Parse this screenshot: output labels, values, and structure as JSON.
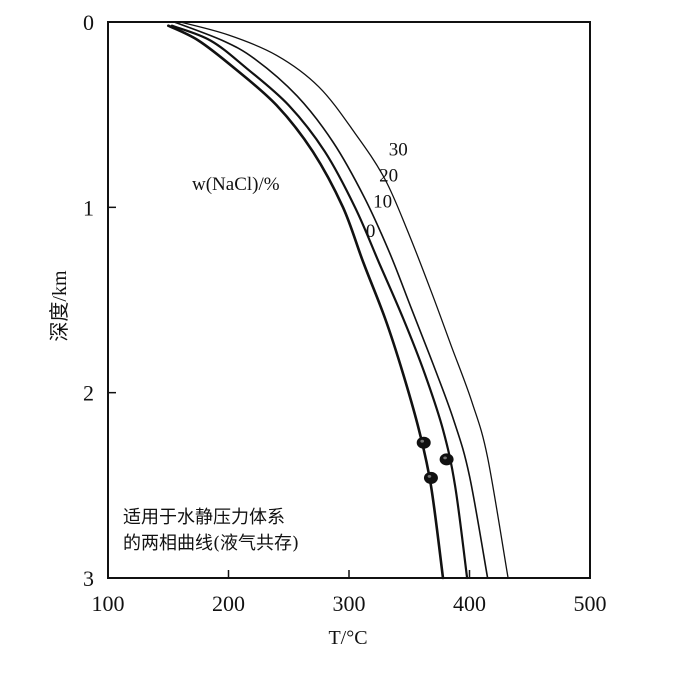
{
  "chart_data": {
    "type": "line",
    "xlabel": "T/°C",
    "ylabel": "深度/km",
    "xlim": [
      100,
      500
    ],
    "ylim": [
      0,
      3
    ],
    "y_reversed": true,
    "grid": false,
    "x_ticks": [
      "100",
      "200",
      "300",
      "400",
      "500"
    ],
    "y_ticks": [
      "0",
      "1",
      "2",
      "3"
    ],
    "series_legend_title": "w(NaCl)/%",
    "annotation": [
      "适用于水静压力体系",
      "的两相曲线(液气共存)"
    ],
    "series": [
      {
        "name": "0",
        "label_at": {
          "x": 314,
          "y": 1.16
        },
        "points": [
          [
            150,
            0.02
          ],
          [
            175,
            0.1
          ],
          [
            205,
            0.25
          ],
          [
            240,
            0.45
          ],
          [
            270,
            0.7
          ],
          [
            295,
            1.0
          ],
          [
            312,
            1.3
          ],
          [
            330,
            1.6
          ],
          [
            345,
            1.9
          ],
          [
            358,
            2.2
          ],
          [
            368,
            2.5
          ],
          [
            378,
            3.0
          ]
        ]
      },
      {
        "name": "10",
        "label_at": {
          "x": 320,
          "y": 1.0
        },
        "points": [
          [
            153,
            0.02
          ],
          [
            185,
            0.1
          ],
          [
            215,
            0.25
          ],
          [
            250,
            0.45
          ],
          [
            280,
            0.7
          ],
          [
            305,
            1.0
          ],
          [
            325,
            1.3
          ],
          [
            345,
            1.6
          ],
          [
            363,
            1.9
          ],
          [
            378,
            2.2
          ],
          [
            388,
            2.5
          ],
          [
            398,
            3.0
          ]
        ]
      },
      {
        "name": "20",
        "label_at": {
          "x": 325,
          "y": 0.86
        },
        "points": [
          [
            155,
            0.0
          ],
          [
            195,
            0.1
          ],
          [
            222,
            0.2
          ],
          [
            257,
            0.4
          ],
          [
            287,
            0.65
          ],
          [
            313,
            0.95
          ],
          [
            334,
            1.25
          ],
          [
            352,
            1.55
          ],
          [
            370,
            1.85
          ],
          [
            387,
            2.15
          ],
          [
            400,
            2.45
          ],
          [
            415,
            3.0
          ]
        ]
      },
      {
        "name": "30",
        "label_at": {
          "x": 333,
          "y": 0.72
        },
        "points": [
          [
            160,
            0.0
          ],
          [
            200,
            0.07
          ],
          [
            240,
            0.18
          ],
          [
            275,
            0.35
          ],
          [
            305,
            0.6
          ],
          [
            330,
            0.85
          ],
          [
            350,
            1.15
          ],
          [
            368,
            1.45
          ],
          [
            385,
            1.75
          ],
          [
            402,
            2.05
          ],
          [
            415,
            2.35
          ],
          [
            432,
            3.0
          ]
        ]
      }
    ],
    "sample_points": [
      {
        "x": 362,
        "y": 2.27
      },
      {
        "x": 381,
        "y": 2.36
      },
      {
        "x": 368,
        "y": 2.46
      }
    ]
  }
}
